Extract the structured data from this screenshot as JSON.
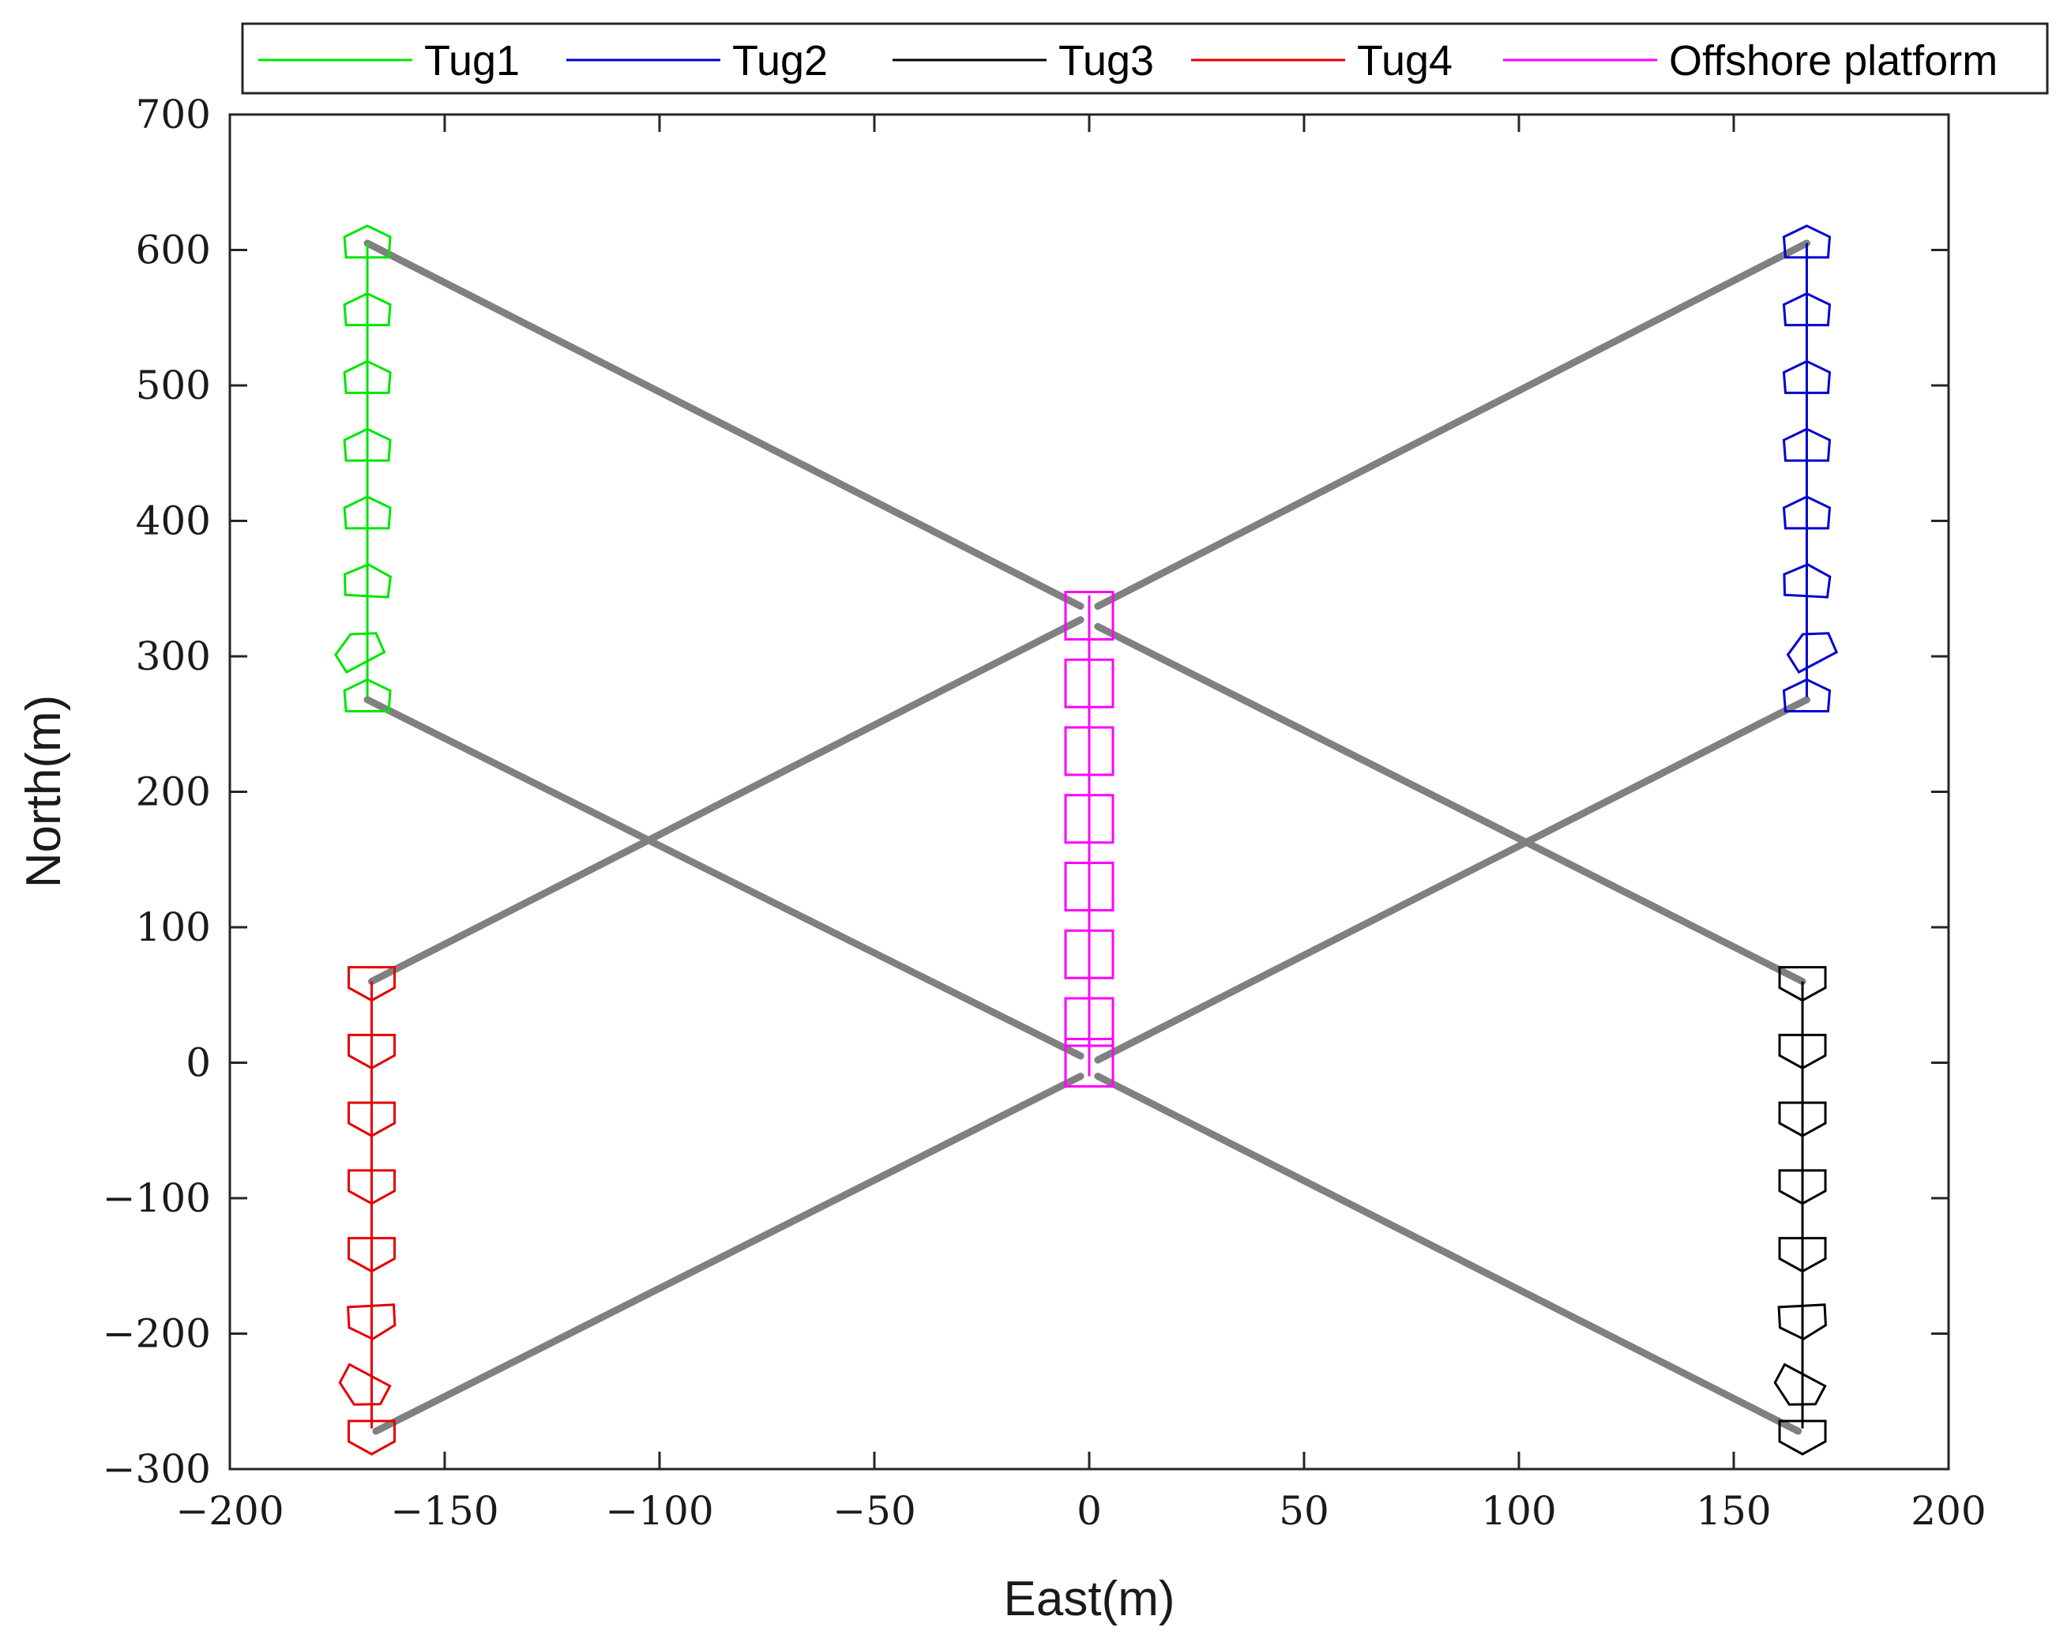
{
  "chart_data": {
    "type": "line",
    "title": "",
    "xlabel": "East(m)",
    "ylabel": "North(m)",
    "xlim": [
      -200,
      200
    ],
    "ylim": [
      -300,
      700
    ],
    "xticks": [
      -200,
      -150,
      -100,
      -50,
      0,
      50,
      100,
      150,
      200
    ],
    "yticks": [
      -300,
      -200,
      -100,
      0,
      100,
      200,
      300,
      400,
      500,
      600,
      700
    ],
    "xtick_labels": [
      "−200",
      "−150",
      "−100",
      "−50",
      "0",
      "50",
      "100",
      "150",
      "200"
    ],
    "ytick_labels": [
      "−300",
      "−200",
      "−100",
      "0",
      "100",
      "200",
      "300",
      "400",
      "500",
      "600",
      "700"
    ],
    "grid": false,
    "legend_position": "top",
    "legend_orientation": "horizontal",
    "series": [
      {
        "name": "Tug1",
        "color": "#00e600",
        "marker": "pentagon",
        "path": [
          [
            -168,
            270
          ],
          [
            -168,
            605
          ]
        ],
        "markers": [
          [
            -168,
            605,
            0
          ],
          [
            -168,
            555,
            0
          ],
          [
            -168,
            505,
            0
          ],
          [
            -168,
            455,
            0
          ],
          [
            -168,
            405,
            0
          ],
          [
            -168,
            355,
            3
          ],
          [
            -170,
            305,
            -28
          ],
          [
            -168,
            270,
            0
          ]
        ]
      },
      {
        "name": "Tug2",
        "color": "#0000d0",
        "marker": "pentagon",
        "path": [
          [
            167,
            270
          ],
          [
            167,
            605
          ]
        ],
        "markers": [
          [
            167,
            605,
            0
          ],
          [
            167,
            555,
            0
          ],
          [
            167,
            505,
            0
          ],
          [
            167,
            455,
            0
          ],
          [
            167,
            405,
            0
          ],
          [
            167,
            355,
            3
          ],
          [
            168,
            305,
            -28
          ],
          [
            167,
            270,
            0
          ]
        ]
      },
      {
        "name": "Tug3",
        "color": "#000000",
        "marker": "pentagon-down",
        "path": [
          [
            166,
            -270
          ],
          [
            166,
            60
          ]
        ],
        "markers": [
          [
            166,
            60,
            0
          ],
          [
            166,
            10,
            0
          ],
          [
            166,
            -40,
            0
          ],
          [
            166,
            -90,
            0
          ],
          [
            166,
            -140,
            0
          ],
          [
            166,
            -190,
            -3
          ],
          [
            165,
            -240,
            28
          ],
          [
            166,
            -275,
            0
          ]
        ]
      },
      {
        "name": "Tug4",
        "color": "#e60000",
        "marker": "pentagon-down",
        "path": [
          [
            -167,
            -270
          ],
          [
            -167,
            60
          ]
        ],
        "markers": [
          [
            -167,
            60,
            0
          ],
          [
            -167,
            10,
            0
          ],
          [
            -167,
            -40,
            0
          ],
          [
            -167,
            -90,
            0
          ],
          [
            -167,
            -140,
            0
          ],
          [
            -167,
            -190,
            -3
          ],
          [
            -169,
            -240,
            28
          ],
          [
            -167,
            -275,
            0
          ]
        ]
      },
      {
        "name": "Offshore platform",
        "color": "#ff00ff",
        "marker": "square",
        "path": [
          [
            0,
            -10
          ],
          [
            0,
            345
          ]
        ],
        "markers": [
          [
            0,
            330
          ],
          [
            0,
            280
          ],
          [
            0,
            230
          ],
          [
            0,
            180
          ],
          [
            0,
            130
          ],
          [
            0,
            80
          ],
          [
            0,
            30
          ],
          [
            0,
            0
          ]
        ]
      }
    ],
    "tow_lines": {
      "color": "#808080",
      "segments": [
        [
          [
            -168,
            605
          ],
          [
            -2,
            337
          ]
        ],
        [
          [
            167,
            605
          ],
          [
            2,
            337
          ]
        ],
        [
          [
            -167,
            60
          ],
          [
            -2,
            327
          ]
        ],
        [
          [
            166,
            60
          ],
          [
            2,
            322
          ]
        ],
        [
          [
            -168,
            268
          ],
          [
            -2,
            5
          ]
        ],
        [
          [
            167,
            268
          ],
          [
            2,
            2
          ]
        ],
        [
          [
            -166,
            -272
          ],
          [
            -2,
            -10
          ]
        ],
        [
          [
            165,
            -272
          ],
          [
            2,
            -10
          ]
        ]
      ]
    }
  }
}
